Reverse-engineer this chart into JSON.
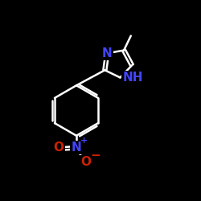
{
  "background": "#000000",
  "bond_color": "#ffffff",
  "bond_width": 1.8,
  "atom_colors": {
    "N": "#4444ff",
    "O": "#cc2200",
    "C": "#ffffff",
    "H": "#ffffff"
  },
  "font_size_atom": 11
}
